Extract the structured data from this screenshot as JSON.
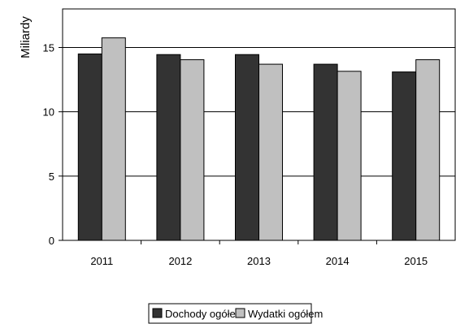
{
  "chart_data": {
    "type": "bar",
    "categories": [
      "2011",
      "2012",
      "2013",
      "2014",
      "2015"
    ],
    "series": [
      {
        "name": "Dochody ogółem",
        "values": [
          14.5,
          14.45,
          14.45,
          13.7,
          13.1
        ],
        "color": "#333333"
      },
      {
        "name": "Wydatki ogółem",
        "values": [
          15.75,
          14.05,
          13.7,
          13.15,
          14.05
        ],
        "color": "#c0c0c0"
      }
    ],
    "ylabel": "Miliardy",
    "ylim": [
      0,
      18
    ],
    "yticks": [
      "0",
      "5",
      "10",
      "15"
    ],
    "grid": true,
    "legend_position": "bottom"
  }
}
